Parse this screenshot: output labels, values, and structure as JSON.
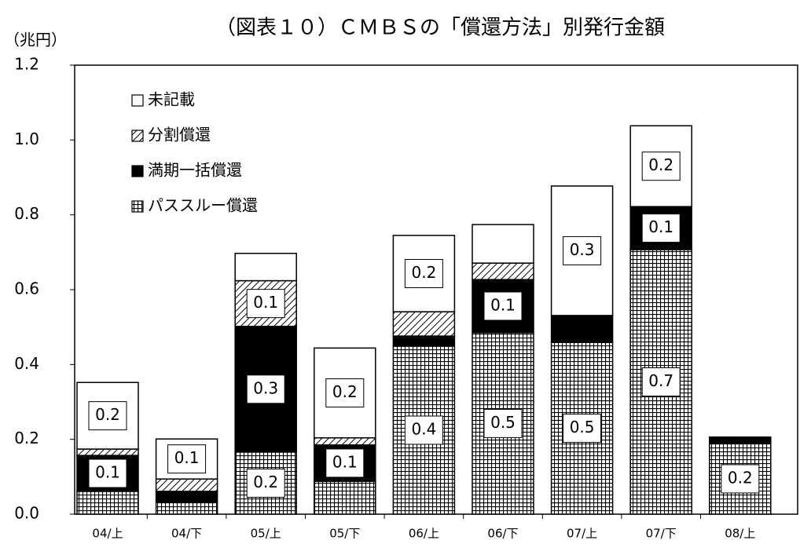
{
  "chart_data": {
    "type": "stacked_bar",
    "title": "（図表１０）ＣＭＢＳの「償還方法」別発行金額",
    "y_axis_label": "（兆円）",
    "categories": [
      "04/上",
      "04/下",
      "05/上",
      "05/下",
      "06/上",
      "06/下",
      "07/上",
      "07/下",
      "08/上"
    ],
    "series": [
      {
        "name": "パススルー償還",
        "color": "#000000",
        "pattern": "grid",
        "values": [
          0.061,
          0.031,
          0.166,
          0.088,
          0.449,
          0.485,
          0.459,
          0.707,
          0.189
        ],
        "value_labels": [
          null,
          null,
          "0.2",
          null,
          "0.4",
          "0.5",
          "0.5",
          "0.7",
          "0.2"
        ]
      },
      {
        "name": "満期一括償還",
        "color": "#000000",
        "pattern": "solid",
        "values": [
          0.096,
          0.03,
          0.336,
          0.097,
          0.027,
          0.142,
          0.072,
          0.115,
          0.017
        ],
        "value_labels": [
          "0.1",
          null,
          "0.3",
          "0.1",
          null,
          "0.1",
          null,
          "0.1",
          null
        ]
      },
      {
        "name": "分割償還",
        "color": "#000000",
        "pattern": "hatch",
        "values": [
          0.017,
          0.033,
          0.122,
          0.019,
          0.065,
          0.044,
          0,
          0,
          0
        ],
        "value_labels": [
          null,
          null,
          "0.1",
          null,
          null,
          null,
          null,
          null,
          null
        ]
      },
      {
        "name": "未記載",
        "color": "#ffffff",
        "pattern": "none",
        "values": [
          0.178,
          0.107,
          0.073,
          0.24,
          0.204,
          0.103,
          0.346,
          0.216,
          0
        ],
        "value_labels": [
          "0.2",
          "0.1",
          null,
          "0.2",
          "0.2",
          null,
          "0.3",
          "0.2",
          null
        ]
      }
    ],
    "ylim": [
      0,
      1.2
    ],
    "yticks": [
      {
        "value": 0,
        "label": "0.0"
      },
      0.2,
      0.4,
      0.6,
      0.8,
      {
        "value": 1,
        "label": "1.0"
      },
      1.2
    ],
    "legend": "upper left"
  }
}
